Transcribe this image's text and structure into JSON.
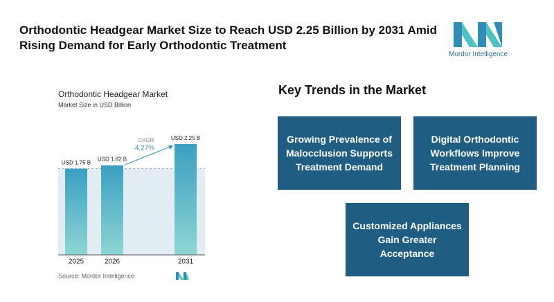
{
  "header": {
    "title": "Orthodontic Headgear Market Size to Reach USD 2.25 Billion by 2031 Amid Rising Demand for Early Orthodontic Treatment",
    "logo": "Mordor Intelligence"
  },
  "chart_data": {
    "type": "bar",
    "title": "Orthodontic Headgear Market",
    "subtitle": "Market Size in USD Billion",
    "categories": [
      "2025",
      "2026",
      "2031"
    ],
    "values": [
      1.75,
      1.82,
      2.25
    ],
    "value_labels": [
      "USD 1.75 B",
      "USD 1.82 B",
      "USD 2.25 B"
    ],
    "annotations": [
      "CAGR",
      "4.27%"
    ],
    "source": "Source: Mordor Intelligence"
  },
  "trends": {
    "title": "Key Trends in the Market",
    "items": [
      "Growing Prevalence of Malocclusion Supports Treatment Demand",
      "Digital Orthodontic Workflows Improve Treatment Planning",
      "Customized Appliances Gain Greater Acceptance"
    ]
  }
}
